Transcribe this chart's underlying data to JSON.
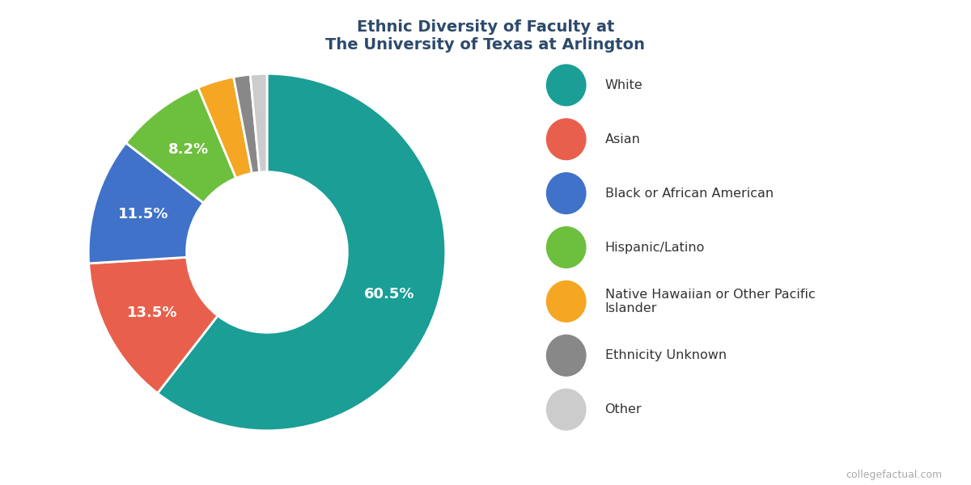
{
  "title": "Ethnic Diversity of Faculty at\nThe University of Texas at Arlington",
  "title_fontsize": 14,
  "title_color": "#2d4a6b",
  "labels": [
    "White",
    "Asian",
    "Black or African American",
    "Hispanic/Latino",
    "Native Hawaiian or Other Pacific Islander",
    "Ethnicity Unknown",
    "Other"
  ],
  "values": [
    60.5,
    13.5,
    11.5,
    8.2,
    3.3,
    1.5,
    1.5
  ],
  "colors": [
    "#1a9e96",
    "#e8604c",
    "#3f72c8",
    "#6dbf3e",
    "#f5a623",
    "#888888",
    "#cccccc"
  ],
  "pct_labels": [
    "60.5%",
    "13.5%",
    "11.5%",
    "8.2%",
    "",
    "",
    ""
  ],
  "legend_labels": [
    "White",
    "Asian",
    "Black or African American",
    "Hispanic/Latino",
    "Native Hawaiian or Other Pacific\nIslander",
    "Ethnicity Unknown",
    "Other"
  ],
  "watermark": "collegefactual.com",
  "background_color": "#ffffff"
}
